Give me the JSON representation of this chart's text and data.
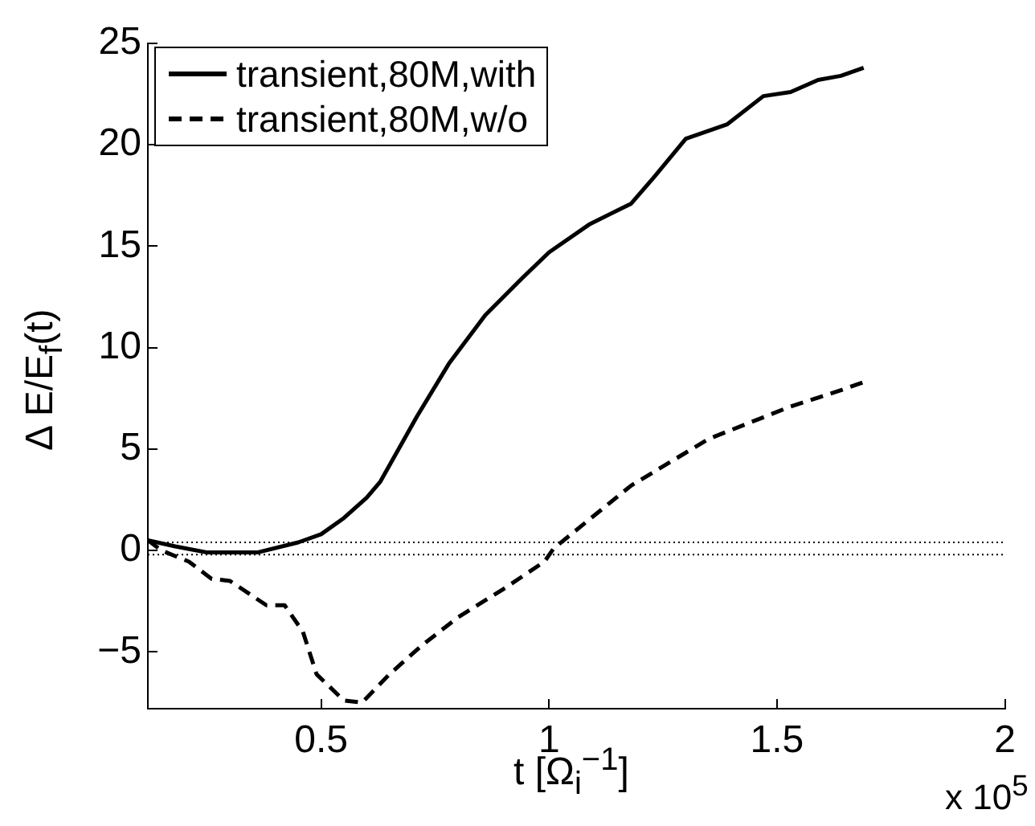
{
  "chart_data": {
    "type": "line",
    "xlabel": "t [Ω$_{i}$$^{−1}$]",
    "ylabel": "Δ E/E$_{f}$(t)",
    "annotations": [
      "x 10$^{5}$"
    ],
    "xlim": [
      0.12,
      2
    ],
    "xticks": [
      0.5,
      1,
      1.5,
      2
    ],
    "ylim": [
      -7.8,
      25
    ],
    "yticks": [
      -5,
      0,
      5,
      10,
      15,
      20,
      25
    ],
    "grid": false,
    "legend": "top left",
    "marker": "none",
    "ref_lines": [
      {
        "axis": "y",
        "value": 0.4,
        "color": "#000000",
        "line_style": "dotted"
      },
      {
        "axis": "y",
        "value": -0.2,
        "color": "#000000",
        "line_style": "dotted"
      }
    ],
    "series": [
      {
        "name": "transient,80M,with",
        "color": "#000000",
        "line_style": "solid",
        "x": [
          0.12,
          0.18,
          0.25,
          0.36,
          0.45,
          0.5,
          0.55,
          0.6,
          0.63,
          0.71,
          0.78,
          0.86,
          0.94,
          1.0,
          1.09,
          1.18,
          1.23,
          1.3,
          1.39,
          1.47,
          1.53,
          1.59,
          1.64,
          1.69
        ],
        "values": [
          0.5,
          0.2,
          -0.1,
          -0.1,
          0.4,
          0.8,
          1.6,
          2.6,
          3.4,
          6.6,
          9.2,
          11.6,
          13.4,
          14.7,
          16.1,
          17.1,
          18.4,
          20.3,
          21.0,
          22.4,
          22.6,
          23.2,
          23.4,
          23.8
        ]
      },
      {
        "name": "transient,80M,w/o",
        "color": "#000000",
        "line_style": "dashed",
        "x": [
          0.12,
          0.15,
          0.21,
          0.26,
          0.3,
          0.38,
          0.42,
          0.46,
          0.49,
          0.55,
          0.59,
          0.65,
          0.72,
          0.8,
          0.9,
          0.99,
          1.01,
          1.18,
          1.35,
          1.53,
          1.64,
          1.69
        ],
        "values": [
          0.5,
          0,
          -0.55,
          -1.4,
          -1.5,
          -2.7,
          -2.7,
          -4.0,
          -6.1,
          -7.4,
          -7.5,
          -6.1,
          -4.7,
          -3.3,
          -1.9,
          -0.55,
          0.1,
          3.2,
          5.5,
          7.1,
          7.9,
          8.3
        ]
      }
    ]
  }
}
